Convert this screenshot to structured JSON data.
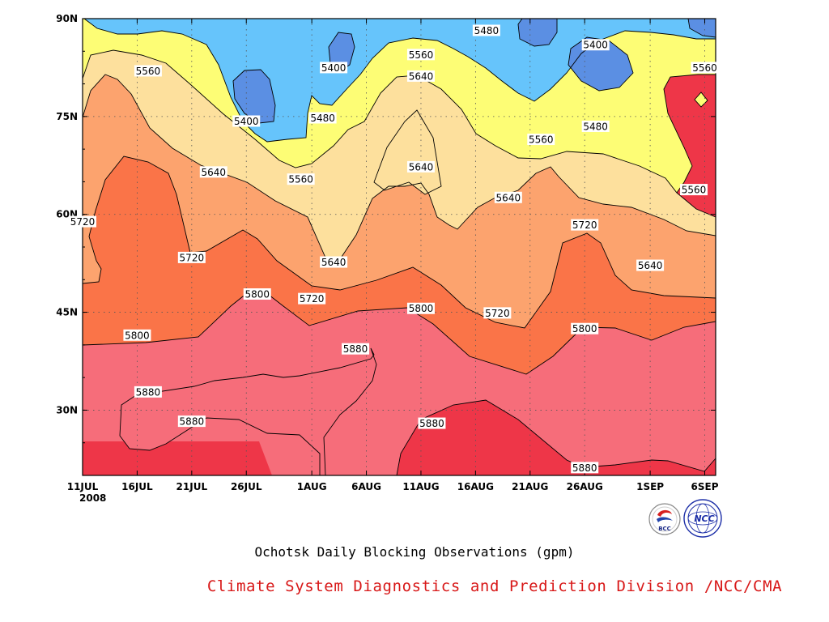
{
  "colors": {
    "band_lt5400": "#5b8fe3",
    "band_5400_5480": "#66c4fb",
    "band_5480_5560": "#fdfd75",
    "band_5560_5640": "#fde09d",
    "band_5640_5720": "#fca36e",
    "band_5720_5800": "#fa7448",
    "band_5800_5880": "#f66d7a",
    "band_gt5880": "#ee3648",
    "credit": "#d81818"
  },
  "chart_data": {
    "type": "heatmap",
    "subtype": "filled-contour",
    "title": "Ochotsk Daily Blocking Observations (gpm)",
    "credit": "Climate System Diagnostics and Prediction Division /NCC/CMA",
    "x_axis": {
      "range": [
        "2008-07-11",
        "2008-09-07"
      ],
      "ticks": [
        "11JUL",
        "16JUL",
        "21JUL",
        "26JUL",
        "1AUG",
        "6AUG",
        "11AUG",
        "16AUG",
        "21AUG",
        "26AUG",
        "1SEP",
        "6SEP"
      ],
      "year_label": "2008"
    },
    "y_axis": {
      "range": [
        20,
        90
      ],
      "ticks": [
        "30N",
        "45N",
        "60N",
        "75N",
        "90N"
      ]
    },
    "contour_levels": [
      5400,
      5480,
      5560,
      5640,
      5720,
      5800,
      5880
    ],
    "contour_labels": [
      {
        "text": "5480",
        "date": "2008-08-17",
        "lat": 88.2
      },
      {
        "text": "5400",
        "date": "2008-08-27",
        "lat": 86.0
      },
      {
        "text": "5400",
        "date": "2008-08-03",
        "lat": 82.5
      },
      {
        "text": "5560",
        "date": "2008-08-11",
        "lat": 84.5
      },
      {
        "text": "5560",
        "date": "2008-07-17",
        "lat": 82.0
      },
      {
        "text": "5560",
        "date": "2008-09-06",
        "lat": 82.5
      },
      {
        "text": "5640",
        "date": "2008-08-11",
        "lat": 81.2
      },
      {
        "text": "5400",
        "date": "2008-07-26",
        "lat": 74.3
      },
      {
        "text": "5480",
        "date": "2008-08-02",
        "lat": 74.8
      },
      {
        "text": "5480",
        "date": "2008-08-27",
        "lat": 73.5
      },
      {
        "text": "5560",
        "date": "2008-08-22",
        "lat": 71.5
      },
      {
        "text": "5640",
        "date": "2008-07-23",
        "lat": 66.5
      },
      {
        "text": "5560",
        "date": "2008-07-31",
        "lat": 65.4
      },
      {
        "text": "5640",
        "date": "2008-08-11",
        "lat": 67.3
      },
      {
        "text": "5640",
        "date": "2008-08-19",
        "lat": 62.6
      },
      {
        "text": "5560",
        "date": "2008-09-05",
        "lat": 63.8
      },
      {
        "text": "5720",
        "date": "2008-07-11",
        "lat": 58.9
      },
      {
        "text": "5720",
        "date": "2008-08-26",
        "lat": 58.4
      },
      {
        "text": "5720",
        "date": "2008-07-21",
        "lat": 53.4
      },
      {
        "text": "5640",
        "date": "2008-08-03",
        "lat": 52.7
      },
      {
        "text": "5640",
        "date": "2008-09-01",
        "lat": 52.2
      },
      {
        "text": "5800",
        "date": "2008-07-27",
        "lat": 47.8
      },
      {
        "text": "5720",
        "date": "2008-08-01",
        "lat": 47.1
      },
      {
        "text": "5800",
        "date": "2008-08-11",
        "lat": 45.6
      },
      {
        "text": "5720",
        "date": "2008-08-18",
        "lat": 44.9
      },
      {
        "text": "5800",
        "date": "2008-08-26",
        "lat": 42.5
      },
      {
        "text": "5800",
        "date": "2008-07-16",
        "lat": 41.5
      },
      {
        "text": "5880",
        "date": "2008-08-05",
        "lat": 39.4
      },
      {
        "text": "5880",
        "date": "2008-07-17",
        "lat": 32.8
      },
      {
        "text": "5880",
        "date": "2008-07-21",
        "lat": 28.3
      },
      {
        "text": "5880",
        "date": "2008-08-12",
        "lat": 28.0
      },
      {
        "text": "5880",
        "date": "2008-08-26",
        "lat": 21.2
      }
    ]
  },
  "logos": [
    {
      "name": "bcc-logo",
      "text": "BCC"
    },
    {
      "name": "ncc-logo",
      "text": "NCC"
    }
  ]
}
